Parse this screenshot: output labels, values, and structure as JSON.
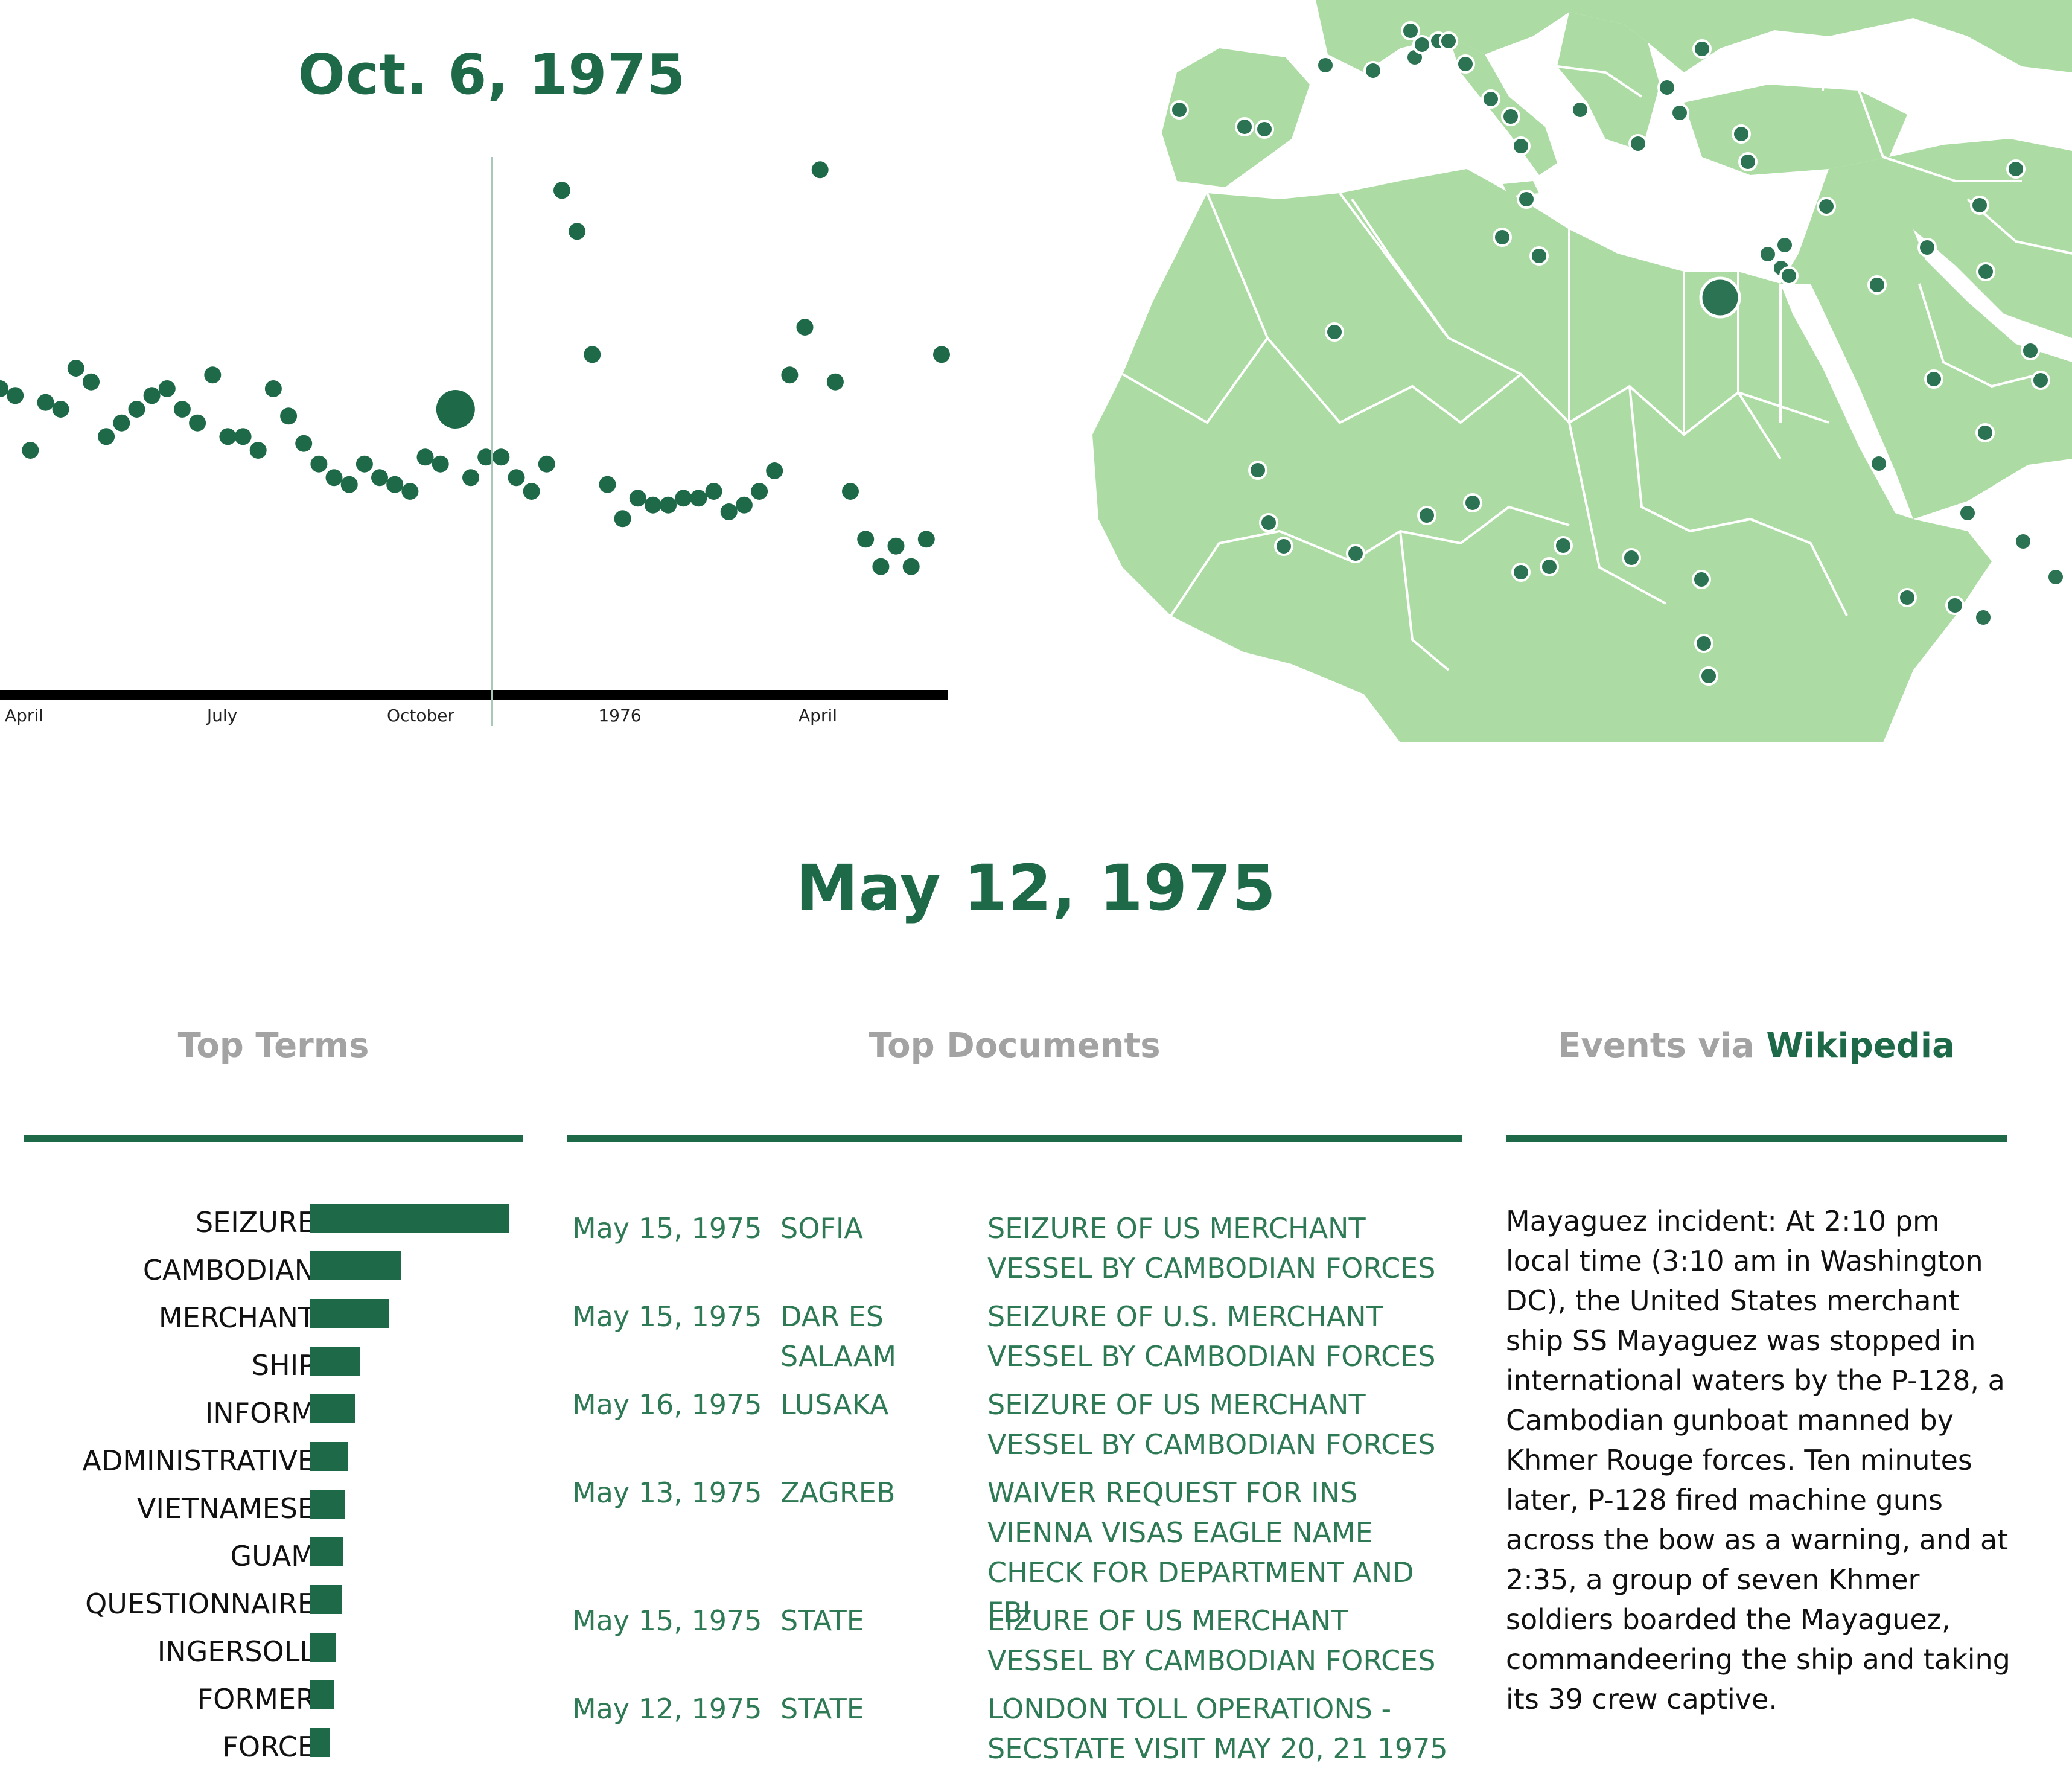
{
  "timeline": {
    "current_date": "Oct. 6, 1975",
    "axis_labels": [
      "April",
      "July",
      "October",
      "1976",
      "April"
    ],
    "accent": "#1e6a48",
    "cursor_color": "#a9c9b8"
  },
  "chart_data": {
    "type": "scatter",
    "title": "",
    "xlabel": "",
    "ylabel": "",
    "x_ticks": [
      "April",
      "July",
      "October",
      "1976",
      "April"
    ],
    "grid": false,
    "legend": "none",
    "series": [
      {
        "values": [
          0.27,
          0.26,
          0.18,
          0.25,
          0.24,
          0.3,
          0.28,
          0.2,
          0.22,
          0.24,
          0.26,
          0.27,
          0.24,
          0.22,
          0.29,
          0.2,
          0.2,
          0.18,
          0.27,
          0.23,
          0.19,
          0.16,
          0.14,
          0.13,
          0.16,
          0.14,
          0.13,
          0.12,
          0.17,
          0.16,
          0.24,
          0.14,
          0.17,
          0.17,
          0.14,
          0.12,
          0.16,
          0.56,
          0.5,
          0.32,
          0.13,
          0.08,
          0.11,
          0.1,
          0.1,
          0.11,
          0.11,
          0.12,
          0.09,
          0.1,
          0.12,
          0.15,
          0.29,
          0.36,
          0.59,
          0.28,
          0.12,
          0.05,
          0.01,
          0.04,
          0.01,
          0.05,
          0.32
        ]
      }
    ],
    "highlight_index": 30
  },
  "map": {
    "land_color": "#acdca3",
    "border_color": "#ffffff",
    "marker_color": "#2b7352"
  },
  "selected_date": "May 12, 1975",
  "sections": {
    "terms_title": "Top Terms",
    "docs_title": "Top Documents",
    "events_prefix": "Events via ",
    "events_source": "Wikipedia"
  },
  "terms": [
    {
      "label": "SEIZURE",
      "weight": 1.0
    },
    {
      "label": "CAMBODIAN",
      "weight": 0.46
    },
    {
      "label": "MERCHANT",
      "weight": 0.4
    },
    {
      "label": "SHIP",
      "weight": 0.25
    },
    {
      "label": "INFORM",
      "weight": 0.23
    },
    {
      "label": "ADMINISTRATIVE",
      "weight": 0.19
    },
    {
      "label": "VIETNAMESE",
      "weight": 0.18
    },
    {
      "label": "GUAM",
      "weight": 0.17
    },
    {
      "label": "QUESTIONNAIRE",
      "weight": 0.16
    },
    {
      "label": "INGERSOLL",
      "weight": 0.13
    },
    {
      "label": "FORMER",
      "weight": 0.12
    },
    {
      "label": "FORCE",
      "weight": 0.1
    }
  ],
  "documents": [
    {
      "date": "May 15, 1975",
      "place": "SOFIA",
      "title": "SEIZURE OF US MERCHANT VESSEL BY CAMBODIAN FORCES"
    },
    {
      "date": "May 15, 1975",
      "place": "DAR ES SALAAM",
      "title": "SEIZURE OF U.S. MERCHANT VESSEL BY CAMBODIAN FORCES"
    },
    {
      "date": "May 16, 1975",
      "place": "LUSAKA",
      "title": "SEIZURE OF US MERCHANT VESSEL BY CAMBODIAN FORCES"
    },
    {
      "date": "May 13, 1975",
      "place": "ZAGREB",
      "title": "WAIVER REQUEST FOR INS VIENNA VISAS EAGLE NAME CHECK FOR DEPARTMENT AND FBI"
    },
    {
      "date": "May 15, 1975",
      "place": "STATE",
      "title": "EIZURE OF US MERCHANT VESSEL BY CAMBODIAN FORCES"
    },
    {
      "date": "May 12, 1975",
      "place": "STATE",
      "title": "LONDON TOLL OPERATIONS - SECSTATE VISIT MAY 20, 21 1975"
    }
  ],
  "event_text": "Mayaguez incident: At 2:10 pm local time (3:10 am in Washington DC), the United States merchant ship SS Mayaguez was stopped in international waters by the P-128, a Cambodian gunboat manned by Khmer Rouge forces. Ten minutes later, P-128 fired machine guns across the bow as a warning, and at 2:35, a group of seven Khmer soldiers boarded the Mayaguez, commandeering the ship and taking its 39 crew captive."
}
